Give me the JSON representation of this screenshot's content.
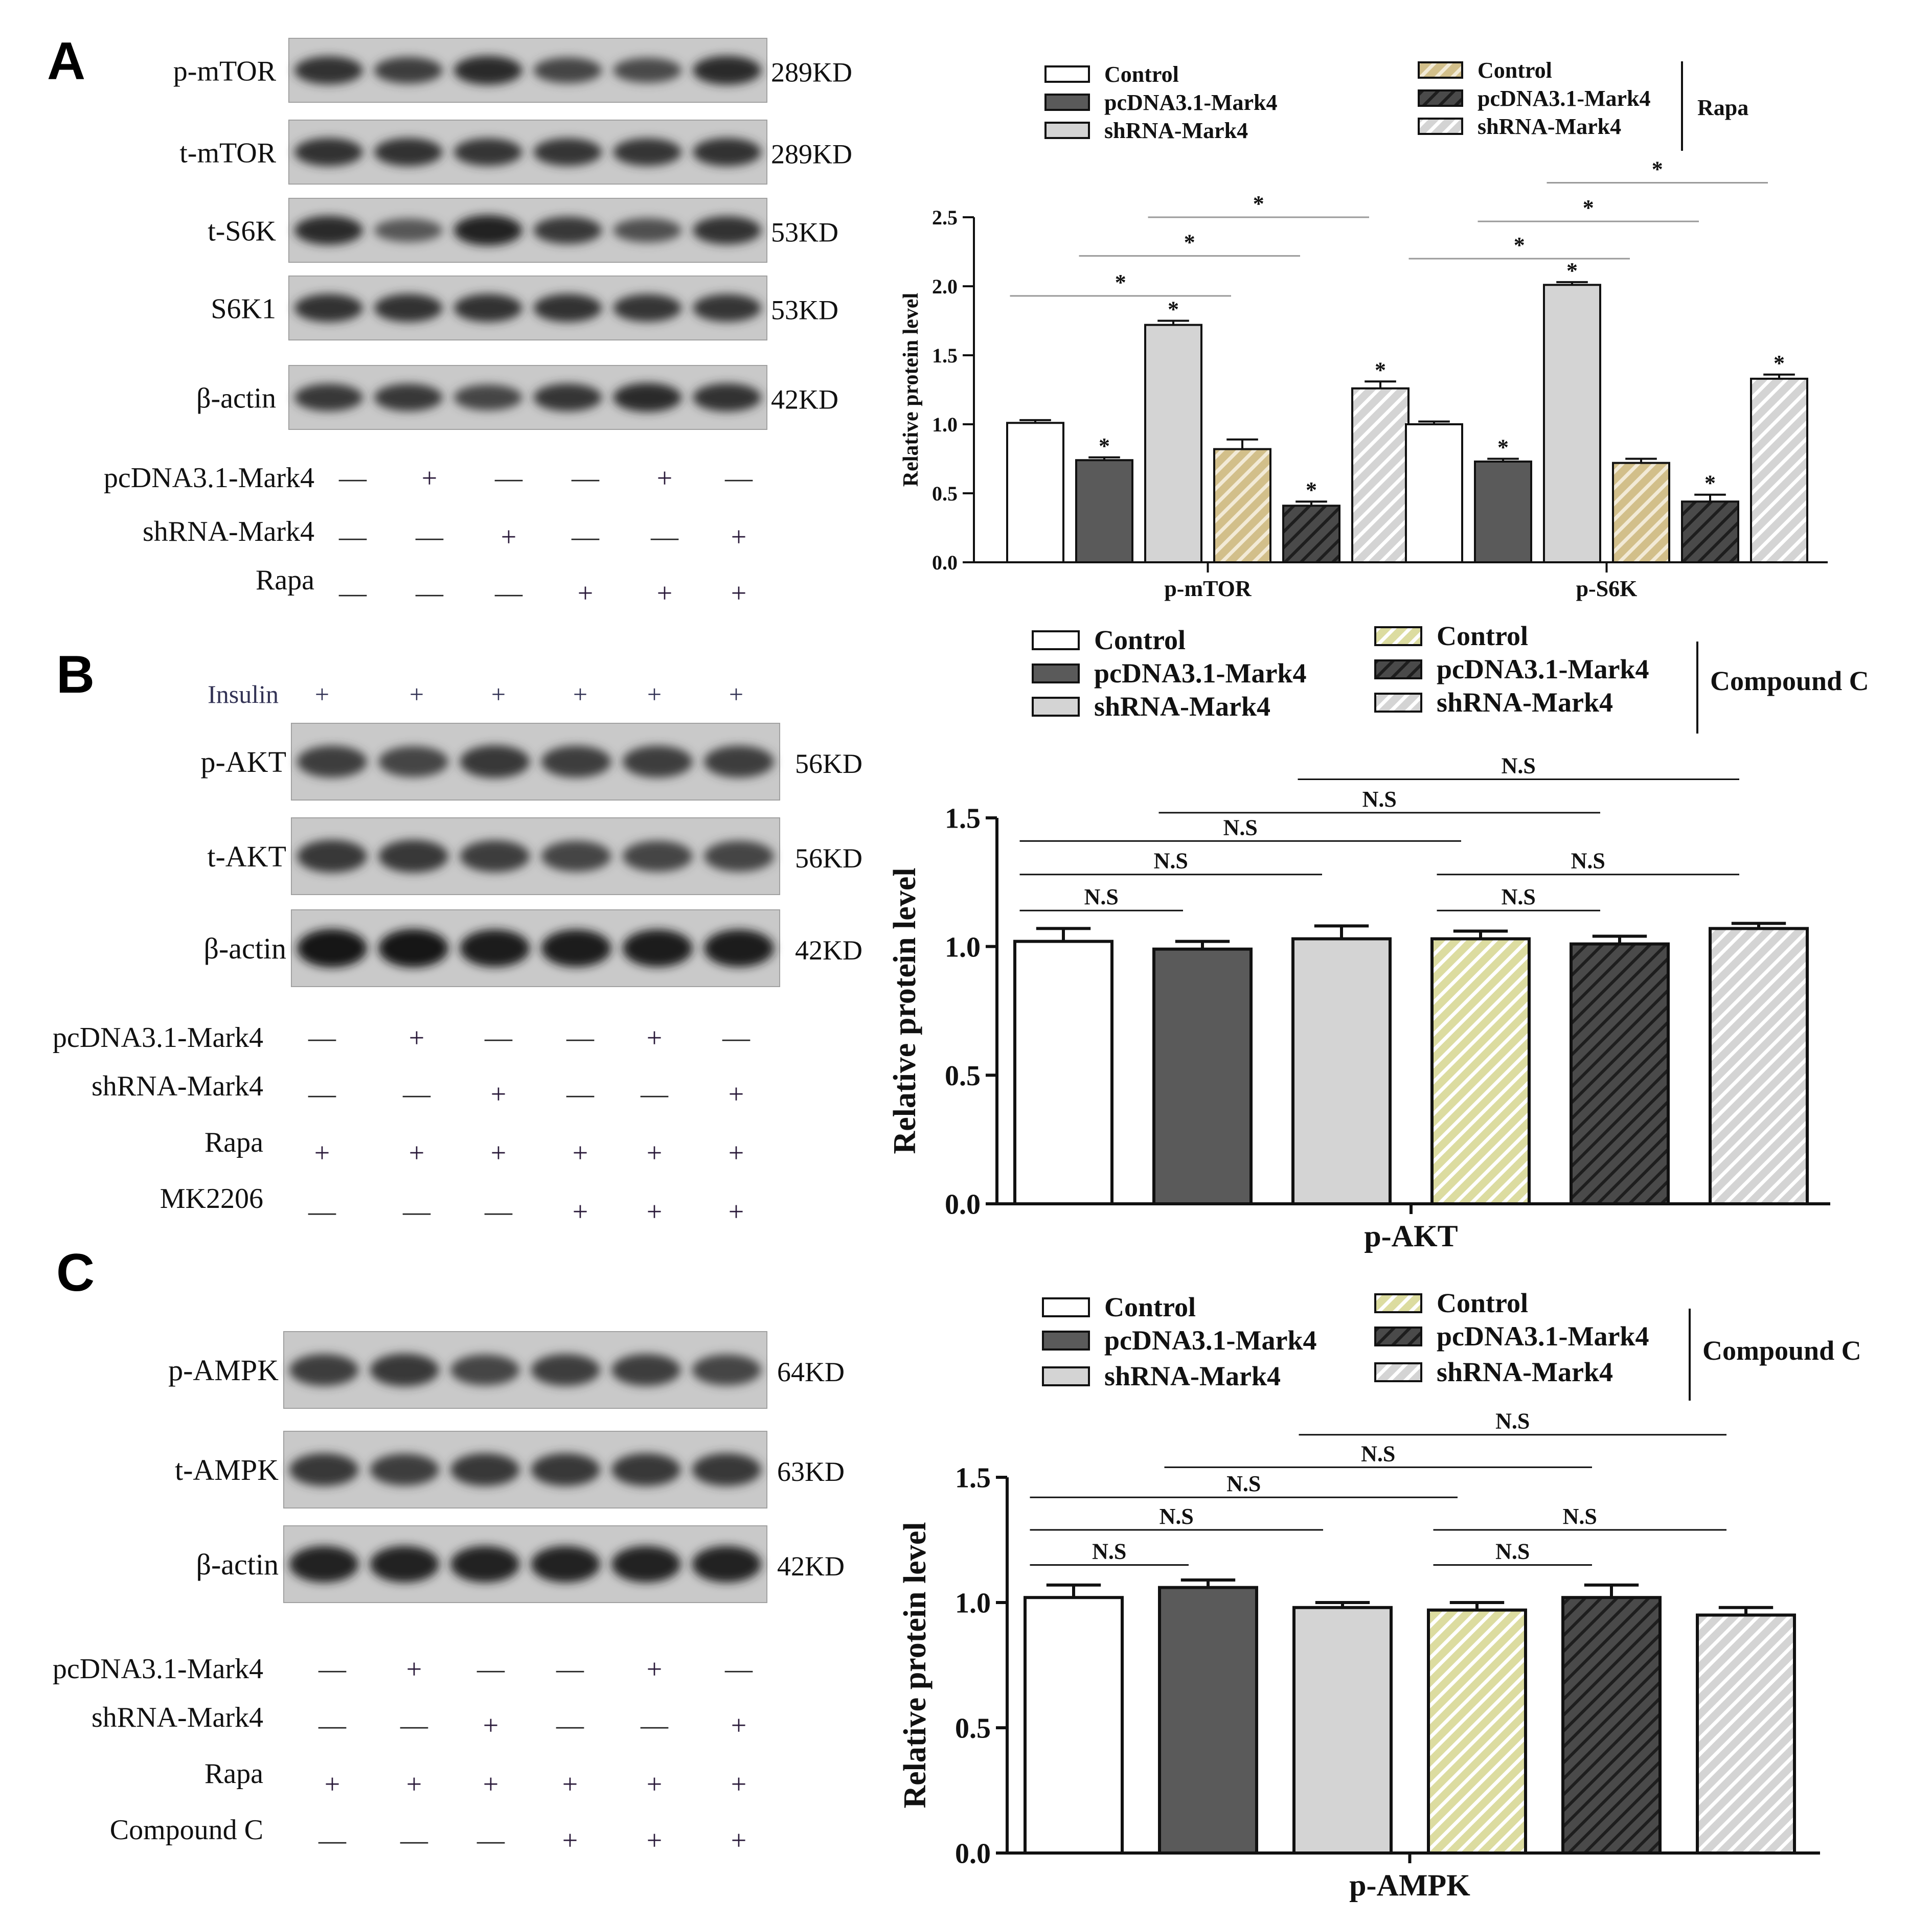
{
  "panels": [
    {
      "letter": "A",
      "blot": {
        "bands": [
          {
            "label": "p-mTOR",
            "size": "289KD",
            "intensity": [
              0.75,
              0.65,
              0.8,
              0.6,
              0.55,
              0.8
            ]
          },
          {
            "label": "t-mTOR",
            "size": "289KD",
            "intensity": [
              0.75,
              0.75,
              0.72,
              0.72,
              0.72,
              0.75
            ]
          },
          {
            "label": "t-S6K",
            "size": "53KD",
            "intensity": [
              0.8,
              0.45,
              0.9,
              0.7,
              0.5,
              0.75
            ]
          },
          {
            "label": "S6K1",
            "size": "53KD",
            "intensity": [
              0.75,
              0.75,
              0.75,
              0.75,
              0.72,
              0.72
            ]
          },
          {
            "label": "β-actin",
            "size": "42KD",
            "intensity": [
              0.7,
              0.7,
              0.6,
              0.72,
              0.8,
              0.75
            ]
          }
        ],
        "conditions": [
          {
            "label": "pcDNA3.1-Mark4",
            "marks": [
              "—",
              "+",
              "—",
              "—",
              "+",
              "—"
            ]
          },
          {
            "label": "shRNA-Mark4",
            "marks": [
              "—",
              "—",
              "+",
              "—",
              "—",
              "+"
            ]
          },
          {
            "label": "Rapa",
            "marks": [
              "—",
              "—",
              "—",
              "+",
              "+",
              "+"
            ]
          }
        ]
      },
      "legend": {
        "left": [
          "Control",
          "pcDNA3.1-Mark4",
          "shRNA-Mark4"
        ],
        "right": [
          "Control",
          "pcDNA3.1-Mark4",
          "shRNA-Mark4"
        ],
        "group_label": "Rapa"
      }
    },
    {
      "letter": "B",
      "blot": {
        "top_label": "Insulin",
        "top_marks": [
          "+",
          "+",
          "+",
          "+",
          "+",
          "+"
        ],
        "bands": [
          {
            "label": "p-AKT",
            "size": "56KD",
            "intensity": [
              0.65,
              0.6,
              0.7,
              0.65,
              0.65,
              0.65
            ]
          },
          {
            "label": "t-AKT",
            "size": "56KD",
            "intensity": [
              0.7,
              0.7,
              0.65,
              0.6,
              0.6,
              0.6
            ]
          },
          {
            "label": "β-actin",
            "size": "42KD",
            "intensity": [
              1.0,
              1.0,
              0.95,
              0.95,
              0.95,
              0.95
            ]
          }
        ],
        "conditions": [
          {
            "label": "pcDNA3.1-Mark4",
            "marks": [
              "—",
              "+",
              "—",
              "—",
              "+",
              "—"
            ]
          },
          {
            "label": "shRNA-Mark4",
            "marks": [
              "—",
              "—",
              "+",
              "—",
              "—",
              "+"
            ]
          },
          {
            "label": "Rapa",
            "marks": [
              "+",
              "+",
              "+",
              "+",
              "+",
              "+"
            ]
          },
          {
            "label": "MK2206",
            "marks": [
              "—",
              "—",
              "—",
              "+",
              "+",
              "+"
            ]
          }
        ]
      },
      "legend": {
        "left": [
          "Control",
          "pcDNA3.1-Mark4",
          "shRNA-Mark4"
        ],
        "right": [
          "Control",
          "pcDNA3.1-Mark4",
          "shRNA-Mark4"
        ],
        "group_label": "Compound C"
      }
    },
    {
      "letter": "C",
      "blot": {
        "bands": [
          {
            "label": "p-AMPK",
            "size": "64KD",
            "intensity": [
              0.65,
              0.7,
              0.6,
              0.65,
              0.65,
              0.6
            ]
          },
          {
            "label": "t-AMPK",
            "size": "63KD",
            "intensity": [
              0.7,
              0.65,
              0.7,
              0.7,
              0.7,
              0.7
            ]
          },
          {
            "label": "β-actin",
            "size": "42KD",
            "intensity": [
              0.9,
              0.9,
              0.9,
              0.9,
              0.9,
              0.9
            ]
          }
        ],
        "conditions": [
          {
            "label": "pcDNA3.1-Mark4",
            "marks": [
              "—",
              "+",
              "—",
              "—",
              "+",
              "—"
            ]
          },
          {
            "label": "shRNA-Mark4",
            "marks": [
              "—",
              "—",
              "+",
              "—",
              "—",
              "+"
            ]
          },
          {
            "label": "Rapa",
            "marks": [
              "+",
              "+",
              "+",
              "+",
              "+",
              "+"
            ]
          },
          {
            "label": "Compound C",
            "marks": [
              "—",
              "—",
              "—",
              "+",
              "+",
              "+"
            ]
          }
        ]
      },
      "legend": {
        "left": [
          "Control",
          "pcDNA3.1-Mark4",
          "shRNA-Mark4"
        ],
        "right": [
          "Control",
          "pcDNA3.1-Mark4",
          "shRNA-Mark4"
        ],
        "group_label": "Compound C"
      }
    }
  ],
  "chart_data": [
    {
      "type": "bar",
      "panel": "A",
      "categories": [
        "p-mTOR",
        "p-S6K"
      ],
      "ylabel": "Relative protein level",
      "ylim": [
        0,
        2.5
      ],
      "yticks": [
        "0.0",
        "0.5",
        "1.0",
        "1.5",
        "2.0",
        "2.5"
      ],
      "series": [
        {
          "values": [
            1.01,
            1.0
          ],
          "errors": [
            0.02,
            0.02
          ],
          "fill": "#ffffff",
          "pattern": "none"
        },
        {
          "values": [
            0.74,
            0.73
          ],
          "errors": [
            0.02,
            0.02
          ],
          "fill": "#5a5a5a",
          "pattern": "none"
        },
        {
          "values": [
            1.72,
            2.01
          ],
          "errors": [
            0.03,
            0.02
          ],
          "fill": "#d4d4d4",
          "pattern": "none"
        },
        {
          "values": [
            0.82,
            0.72
          ],
          "errors": [
            0.07,
            0.03
          ],
          "fill": "#d2bf8a",
          "pattern": "hatch"
        },
        {
          "values": [
            0.41,
            0.44
          ],
          "errors": [
            0.03,
            0.05
          ],
          "fill": "#4a4a4a",
          "pattern": "hatch"
        },
        {
          "values": [
            1.26,
            1.33
          ],
          "errors": [
            0.05,
            0.03
          ],
          "fill": "#d4d4d4",
          "pattern": "hatch"
        }
      ],
      "bar_stars": [
        [
          false,
          true,
          true,
          false,
          true,
          true
        ],
        [
          false,
          true,
          true,
          false,
          true,
          true
        ]
      ],
      "brackets": [
        {
          "group": 0,
          "from": 0,
          "to": 3,
          "y": 1.93,
          "label": "*"
        },
        {
          "group": 0,
          "from": 1,
          "to": 4,
          "y": 2.22,
          "label": "*"
        },
        {
          "group": 0,
          "from": 2,
          "to": 5,
          "y": 2.5,
          "label": "*"
        },
        {
          "group": 1,
          "from": 0,
          "to": 3,
          "y": 2.2,
          "label": "*"
        },
        {
          "group": 1,
          "from": 1,
          "to": 4,
          "y": 2.47,
          "label": "*"
        },
        {
          "group": 1,
          "from": 2,
          "to": 5,
          "y": 2.75,
          "label": "*"
        }
      ]
    },
    {
      "type": "bar",
      "panel": "B",
      "categories": [
        "p-AKT"
      ],
      "ylabel": "Relative protein level",
      "ylim": [
        0,
        1.5
      ],
      "yticks": [
        "0.0",
        "0.5",
        "1.0",
        "1.5"
      ],
      "series": [
        {
          "values": [
            1.02
          ],
          "errors": [
            0.05
          ],
          "fill": "#ffffff",
          "pattern": "none"
        },
        {
          "values": [
            0.99
          ],
          "errors": [
            0.03
          ],
          "fill": "#5a5a5a",
          "pattern": "none"
        },
        {
          "values": [
            1.03
          ],
          "errors": [
            0.05
          ],
          "fill": "#d4d4d4",
          "pattern": "none"
        },
        {
          "values": [
            1.03
          ],
          "errors": [
            0.03
          ],
          "fill": "#dcdca0",
          "pattern": "hatch"
        },
        {
          "values": [
            1.01
          ],
          "errors": [
            0.03
          ],
          "fill": "#4a4a4a",
          "pattern": "hatch"
        },
        {
          "values": [
            1.07
          ],
          "errors": [
            0.02
          ],
          "fill": "#d4d4d4",
          "pattern": "hatch"
        }
      ],
      "brackets": [
        {
          "group": 0,
          "from": 0,
          "to": 1,
          "y": 1.14,
          "label": "N.S"
        },
        {
          "group": 0,
          "from": 0,
          "to": 2,
          "y": 1.28,
          "label": "N.S"
        },
        {
          "group": 0,
          "from": 0,
          "to": 3,
          "y": 1.41,
          "label": "N.S"
        },
        {
          "group": 0,
          "from": 1,
          "to": 4,
          "y": 1.52,
          "label": "N.S"
        },
        {
          "group": 0,
          "from": 2,
          "to": 5,
          "y": 1.65,
          "label": "N.S"
        },
        {
          "group": 0,
          "from": 3,
          "to": 4,
          "y": 1.14,
          "label": "N.S"
        },
        {
          "group": 0,
          "from": 3,
          "to": 5,
          "y": 1.28,
          "label": "N.S"
        }
      ]
    },
    {
      "type": "bar",
      "panel": "C",
      "categories": [
        "p-AMPK"
      ],
      "ylabel": "Relative protein level",
      "ylim": [
        0,
        1.5
      ],
      "yticks": [
        "0.0",
        "0.5",
        "1.0",
        "1.5"
      ],
      "series": [
        {
          "values": [
            1.02
          ],
          "errors": [
            0.05
          ],
          "fill": "#ffffff",
          "pattern": "none"
        },
        {
          "values": [
            1.06
          ],
          "errors": [
            0.03
          ],
          "fill": "#5a5a5a",
          "pattern": "none"
        },
        {
          "values": [
            0.98
          ],
          "errors": [
            0.02
          ],
          "fill": "#d4d4d4",
          "pattern": "none"
        },
        {
          "values": [
            0.97
          ],
          "errors": [
            0.03
          ],
          "fill": "#dcdca0",
          "pattern": "hatch"
        },
        {
          "values": [
            1.02
          ],
          "errors": [
            0.05
          ],
          "fill": "#4a4a4a",
          "pattern": "hatch"
        },
        {
          "values": [
            0.95
          ],
          "errors": [
            0.03
          ],
          "fill": "#d4d4d4",
          "pattern": "hatch"
        }
      ],
      "brackets": [
        {
          "group": 0,
          "from": 0,
          "to": 1,
          "y": 1.15,
          "label": "N.S"
        },
        {
          "group": 0,
          "from": 0,
          "to": 2,
          "y": 1.29,
          "label": "N.S"
        },
        {
          "group": 0,
          "from": 0,
          "to": 3,
          "y": 1.42,
          "label": "N.S"
        },
        {
          "group": 0,
          "from": 1,
          "to": 4,
          "y": 1.54,
          "label": "N.S"
        },
        {
          "group": 0,
          "from": 2,
          "to": 5,
          "y": 1.67,
          "label": "N.S"
        },
        {
          "group": 0,
          "from": 3,
          "to": 4,
          "y": 1.15,
          "label": "N.S"
        },
        {
          "group": 0,
          "from": 3,
          "to": 5,
          "y": 1.29,
          "label": "N.S"
        }
      ]
    }
  ]
}
